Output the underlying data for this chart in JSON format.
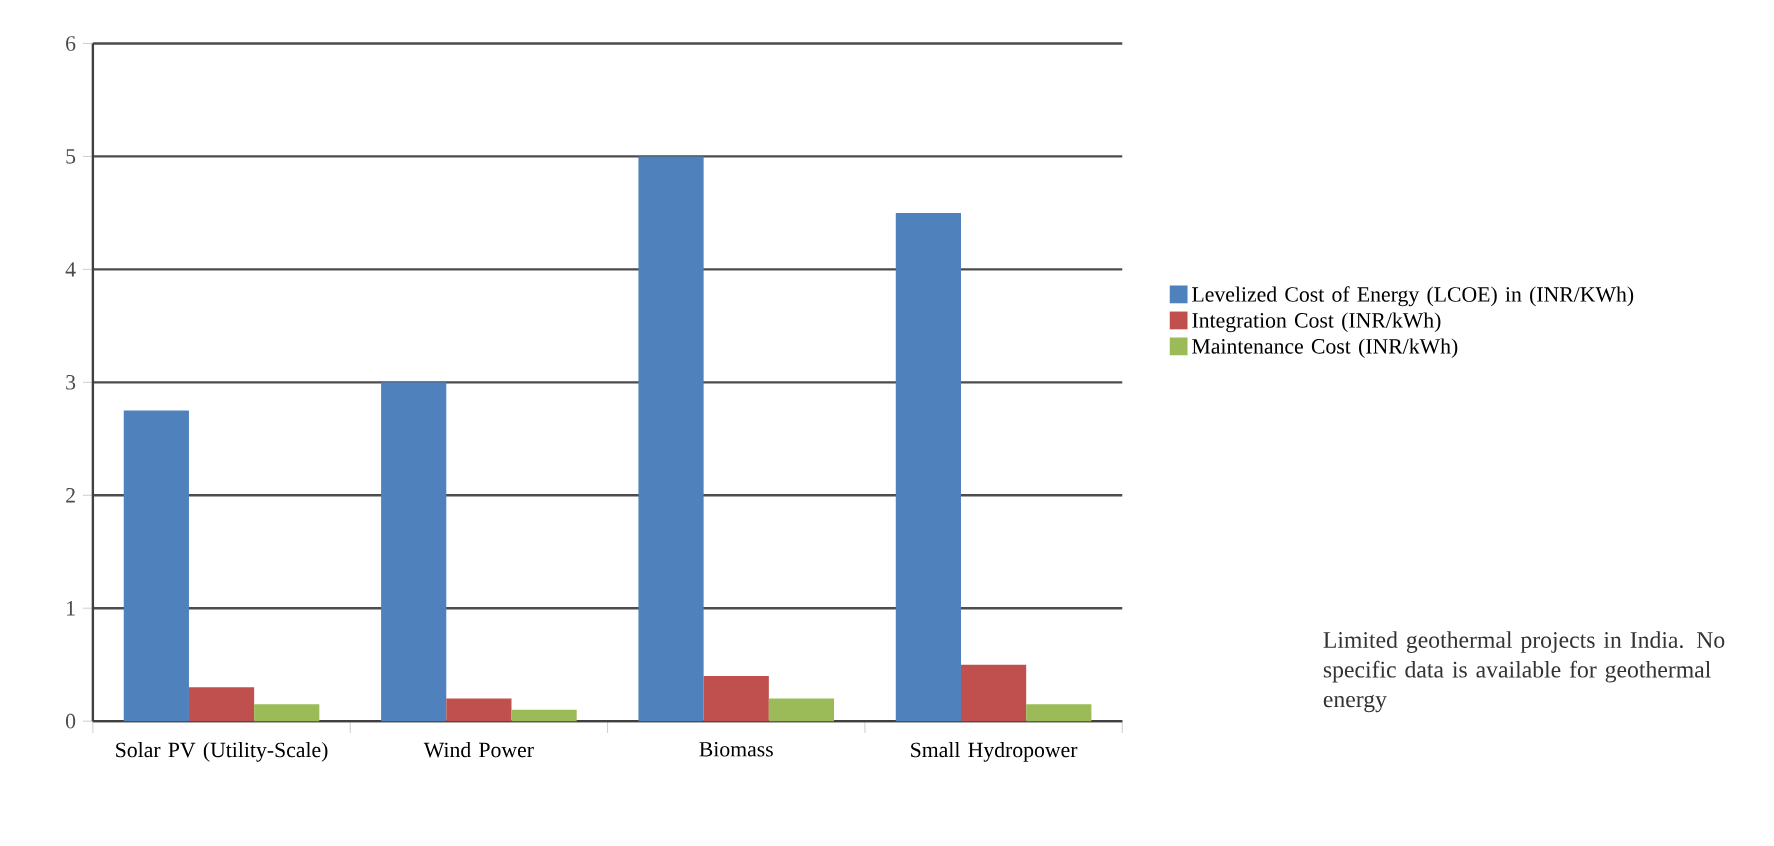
{
  "chart_data": {
    "type": "bar",
    "categories": [
      "Solar PV (Utility-Scale)",
      "Wind Power",
      "Biomass",
      "Small Hydropower"
    ],
    "series": [
      {
        "name": "Levelized Cost of Energy (LCOE) in (INR/KWh)",
        "color": "#4f81bd",
        "values": [
          2.75,
          3,
          5,
          4.5
        ]
      },
      {
        "name": "Integration Cost (INR/kWh)",
        "color": "#c0504d",
        "values": [
          0.3,
          0.2,
          0.4,
          0.5
        ]
      },
      {
        "name": "Maintenance Cost (INR/kWh)",
        "color": "#9bbb59",
        "values": [
          0.15,
          0.1,
          0.2,
          0.15
        ]
      }
    ],
    "ylim": [
      0,
      6
    ],
    "yticks": [
      0,
      1,
      2,
      3,
      4,
      5,
      6
    ],
    "grid": "y",
    "legend": "right",
    "annotations": [
      "Limited geothermal projects in India. No specific data is available for geothermal energy"
    ]
  }
}
